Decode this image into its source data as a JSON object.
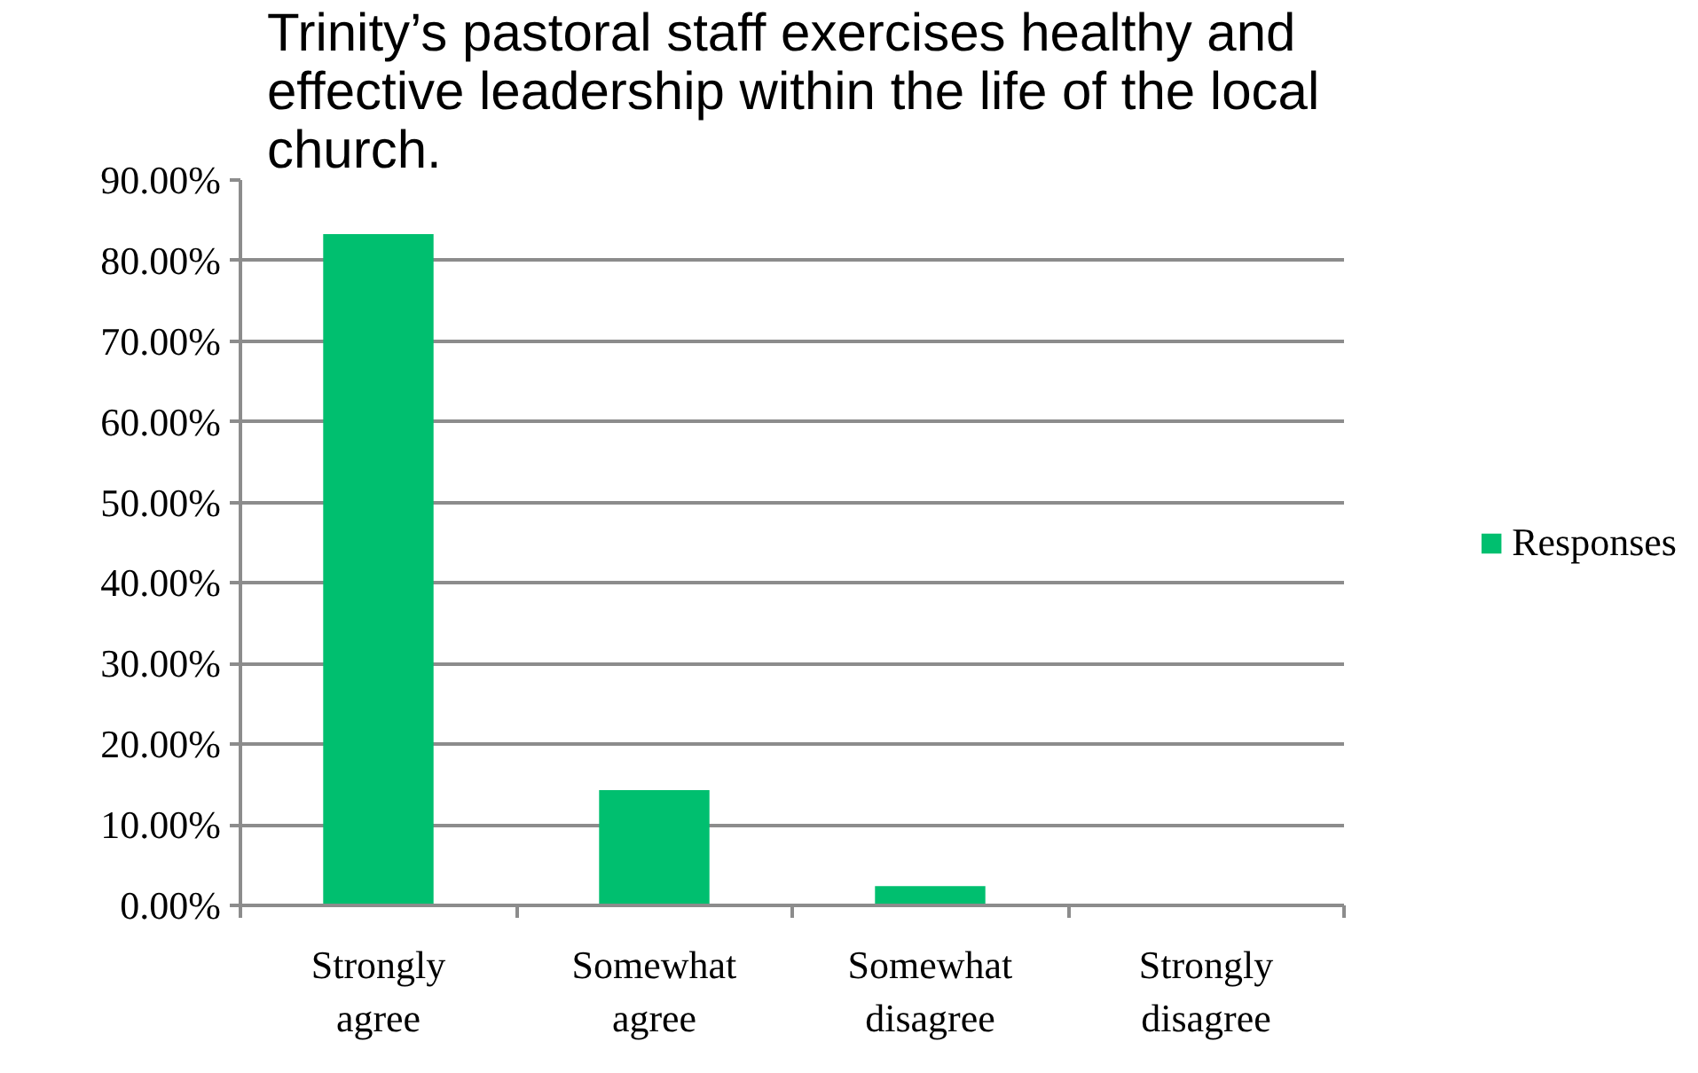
{
  "chart_data": {
    "type": "bar",
    "title": "Trinity’s pastoral staff exercises healthy and effective leadership within the life of the local church.",
    "categories": [
      "Strongly agree",
      "Somewhat agree",
      "Somewhat disagree",
      "Strongly disagree"
    ],
    "series": [
      {
        "name": "Responses",
        "color": "#00bf6f",
        "values": [
          83.3,
          14.3,
          2.4,
          0
        ]
      }
    ],
    "ylim": [
      0,
      90
    ],
    "yticks": [
      {
        "value": 0,
        "label": "0.00%"
      },
      {
        "value": 10,
        "label": "10.00%"
      },
      {
        "value": 20,
        "label": "20.00%"
      },
      {
        "value": 30,
        "label": "30.00%"
      },
      {
        "value": 40,
        "label": "40.00%"
      },
      {
        "value": 50,
        "label": "50.00%"
      },
      {
        "value": 60,
        "label": "60.00%"
      },
      {
        "value": 70,
        "label": "70.00%"
      },
      {
        "value": 80,
        "label": "80.00%"
      },
      {
        "value": 90,
        "label": "90.00%"
      }
    ],
    "grid": "y",
    "legend": "right"
  }
}
